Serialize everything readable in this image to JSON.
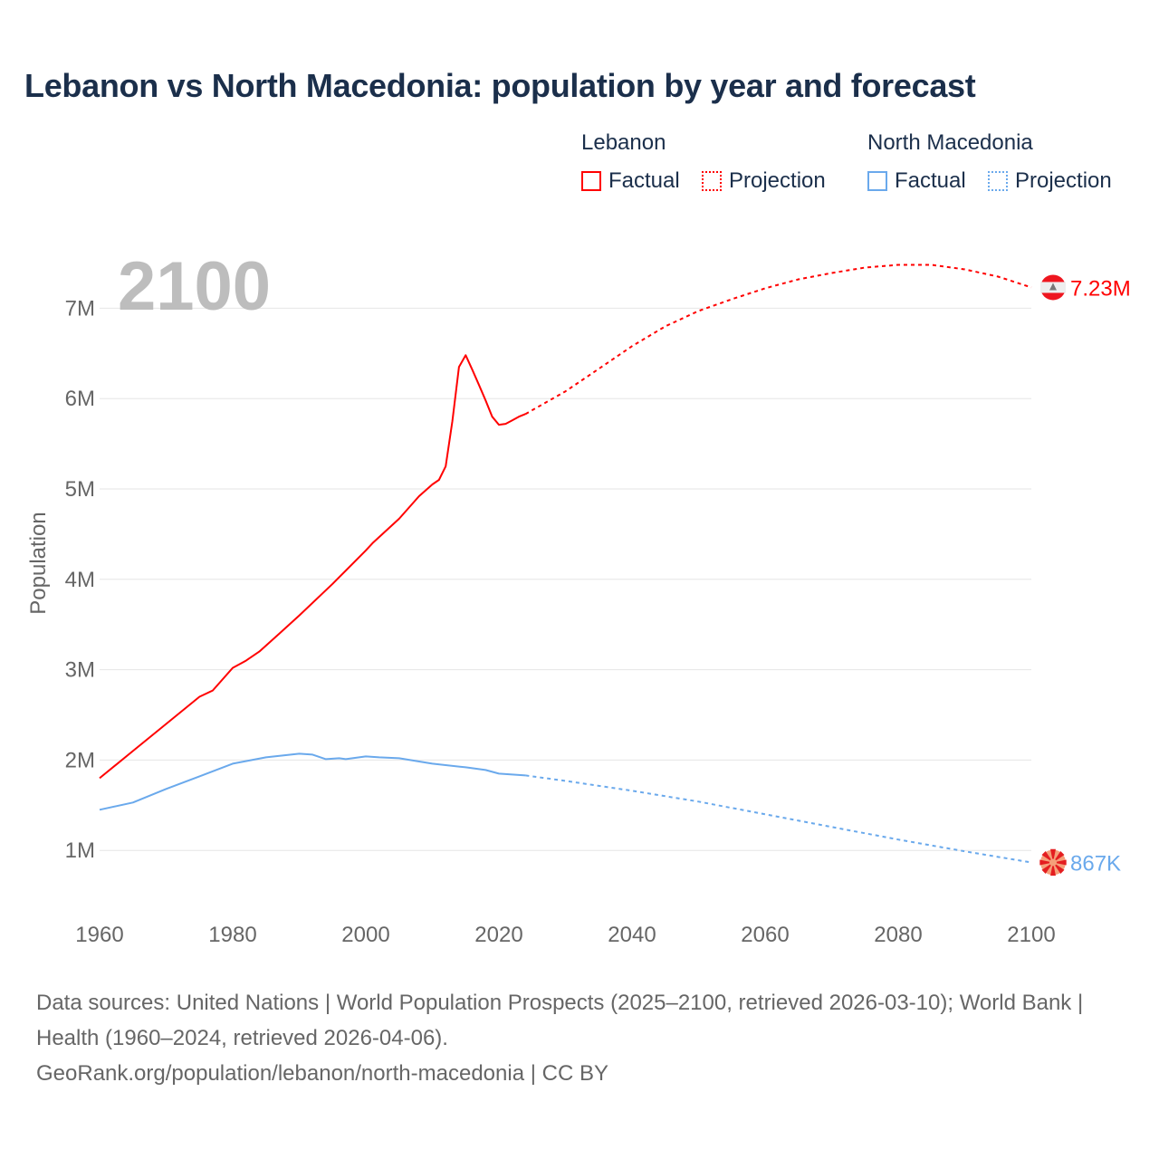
{
  "chart_data": {
    "type": "line",
    "title": "Lebanon vs North Macedonia: population by year and forecast",
    "ylabel": "Population",
    "xlabel": "",
    "year_label": "2100",
    "xlim": [
      1960,
      2100
    ],
    "ylim": [
      0,
      7500000
    ],
    "x_ticks": [
      1960,
      1980,
      2000,
      2020,
      2040,
      2060,
      2080,
      2100
    ],
    "x_tick_labels": [
      "1960",
      "1980",
      "2000",
      "2020",
      "2040",
      "2060",
      "2080",
      "2100"
    ],
    "y_ticks": [
      1000000,
      2000000,
      3000000,
      4000000,
      5000000,
      6000000,
      7000000
    ],
    "y_tick_labels": [
      "1M",
      "2M",
      "3M",
      "4M",
      "5M",
      "6M",
      "7M"
    ],
    "grid": true,
    "legend": {
      "placement": "top-right",
      "groups": [
        {
          "name": "Lebanon",
          "factual": "Factual",
          "projection": "Projection"
        },
        {
          "name": "North Macedonia",
          "factual": "Factual",
          "projection": "Projection"
        }
      ]
    },
    "series": [
      {
        "name": "Lebanon",
        "color": "#ff0000",
        "end_label": "7.23M",
        "flag": "lebanon-flag",
        "factual": {
          "x": [
            1960,
            1965,
            1970,
            1975,
            1977,
            1980,
            1982,
            1984,
            1987,
            1990,
            1995,
            2000,
            2001,
            2005,
            2008,
            2010,
            2011,
            2012,
            2013,
            2014,
            2015,
            2016,
            2017,
            2018,
            2019,
            2020,
            2021,
            2022,
            2023,
            2024
          ],
          "y": [
            1.8,
            2.1,
            2.4,
            2.7,
            2.77,
            3.02,
            3.1,
            3.2,
            3.4,
            3.6,
            3.95,
            4.32,
            4.4,
            4.67,
            4.92,
            5.05,
            5.1,
            5.25,
            5.75,
            6.35,
            6.48,
            6.32,
            6.15,
            5.98,
            5.8,
            5.71,
            5.72,
            5.76,
            5.8,
            5.83
          ]
        },
        "projection": {
          "x": [
            2024,
            2030,
            2035,
            2040,
            2045,
            2050,
            2055,
            2060,
            2065,
            2070,
            2075,
            2080,
            2085,
            2090,
            2095,
            2100
          ],
          "y": [
            5.83,
            6.08,
            6.33,
            6.58,
            6.8,
            6.97,
            7.1,
            7.22,
            7.32,
            7.39,
            7.45,
            7.48,
            7.48,
            7.43,
            7.35,
            7.23
          ]
        }
      },
      {
        "name": "North Macedonia",
        "color": "#6aa9ec",
        "end_label": "867K",
        "flag": "north-macedonia-flag",
        "factual": {
          "x": [
            1960,
            1965,
            1970,
            1975,
            1980,
            1985,
            1990,
            1992,
            1994,
            1996,
            1997,
            2000,
            2002,
            2005,
            2010,
            2015,
            2018,
            2020,
            2024
          ],
          "y": [
            1.45,
            1.53,
            1.68,
            1.82,
            1.96,
            2.03,
            2.07,
            2.06,
            2.01,
            2.02,
            2.01,
            2.04,
            2.03,
            2.02,
            1.96,
            1.92,
            1.89,
            1.85,
            1.83
          ]
        },
        "projection": {
          "x": [
            2024,
            2030,
            2040,
            2050,
            2060,
            2070,
            2080,
            2090,
            2100
          ],
          "y": [
            1.83,
            1.77,
            1.66,
            1.54,
            1.4,
            1.26,
            1.12,
            0.99,
            0.867
          ]
        }
      }
    ],
    "y_unit_multiplier": 1000000
  },
  "footer": {
    "sources": "Data sources: United Nations | World Population Prospects (2025–2100, retrieved 2026-03-10); World Bank | Health (1960–2024, retrieved 2026-04-06).",
    "credit": "GeoRank.org/population/lebanon/north-macedonia | CC BY"
  }
}
